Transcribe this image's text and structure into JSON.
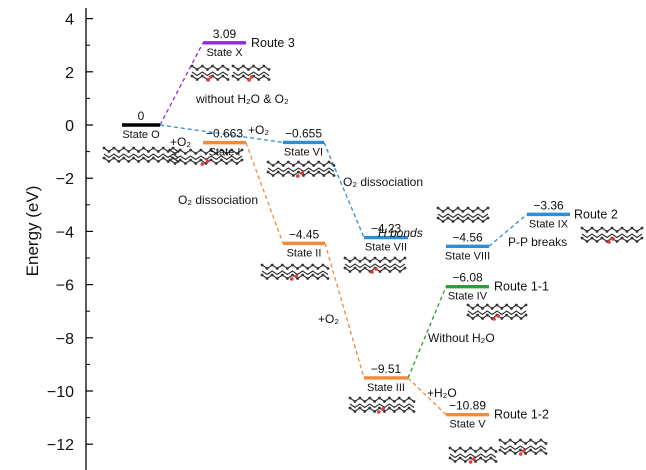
{
  "chart_data": {
    "type": "energy-level-diagram",
    "ylabel": "Energy (eV)",
    "ylim": [
      -13,
      4
    ],
    "y_ticks": [
      4,
      2,
      0,
      -2,
      -4,
      -6,
      -8,
      -10,
      -12
    ],
    "grid": false,
    "states": [
      {
        "id": "O",
        "label": "State O",
        "energy": 0,
        "value_label": "0",
        "color": "#000000"
      },
      {
        "id": "X",
        "label": "State X",
        "energy": 3.09,
        "value_label": "3.09",
        "color": "#8b2be2"
      },
      {
        "id": "I",
        "label": "State I",
        "energy": -0.663,
        "value_label": "−0.663",
        "color": "#f08a3c"
      },
      {
        "id": "VI",
        "label": "State VI",
        "energy": -0.655,
        "value_label": "−0.655",
        "color": "#2b8fd6"
      },
      {
        "id": "II",
        "label": "State II",
        "energy": -4.45,
        "value_label": "−4.45",
        "color": "#f08a3c"
      },
      {
        "id": "VII",
        "label": "State VII",
        "energy": -4.23,
        "value_label": "−4.23",
        "color": "#2b8fd6"
      },
      {
        "id": "VIII",
        "label": "State VIII",
        "energy": -4.56,
        "value_label": "−4.56",
        "color": "#2b8fd6"
      },
      {
        "id": "IX",
        "label": "State IX",
        "energy": -3.36,
        "value_label": "−3.36",
        "color": "#2b8fd6"
      },
      {
        "id": "IV",
        "label": "State IV",
        "energy": -6.08,
        "value_label": "−6.08",
        "color": "#2e9c3a"
      },
      {
        "id": "III",
        "label": "State III",
        "energy": -9.51,
        "value_label": "−9.51",
        "color": "#f08a3c"
      },
      {
        "id": "V",
        "label": "State V",
        "energy": -10.89,
        "value_label": "−10.89",
        "color": "#f08a3c"
      }
    ],
    "connections": [
      {
        "from": "O",
        "to": "X",
        "color": "#8b2be2"
      },
      {
        "from": "O",
        "to": "VI",
        "color": "#2b8fd6"
      },
      {
        "from": "VI",
        "to": "VII",
        "color": "#2b8fd6"
      },
      {
        "from": "VIII",
        "to": "IX",
        "color": "#2b8fd6"
      },
      {
        "from": "I",
        "to": "II",
        "color": "#f08a3c"
      },
      {
        "from": "II",
        "to": "III",
        "color": "#f08a3c"
      },
      {
        "from": "III",
        "to": "V",
        "color": "#f08a3c"
      },
      {
        "from": "III",
        "to": "IV",
        "color": "#2e9c3a"
      }
    ],
    "routes": [
      {
        "text": "Route 3",
        "state": "X"
      },
      {
        "text": "Route 2",
        "state": "IX"
      },
      {
        "text": "Route 1-1",
        "state": "IV"
      },
      {
        "text": "Route 1-2",
        "state": "V"
      }
    ],
    "annotations": [
      {
        "text": "without H₂O & O₂"
      },
      {
        "text": "+O₂"
      },
      {
        "text": "+O₂"
      },
      {
        "text": "O₂ dissociation"
      },
      {
        "text": "O₂ dissociation"
      },
      {
        "text": "H bonds"
      },
      {
        "text": "P-P breaks"
      },
      {
        "text": "+O₂"
      },
      {
        "text": "Without H₂O"
      },
      {
        "text": "+H₂O"
      }
    ]
  }
}
